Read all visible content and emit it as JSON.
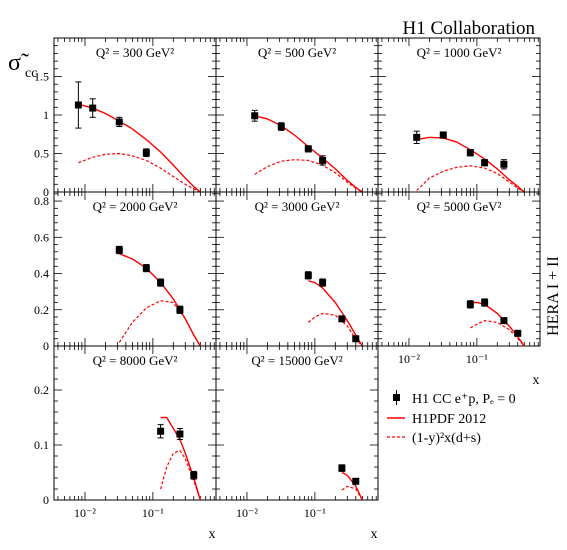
{
  "collaboration": "H1 Collaboration",
  "ylabel": "σ̃",
  "ylabel_sub": "cc",
  "xlabel": "x",
  "side_label": "HERA I + II",
  "legend": {
    "data": "H1 CC e⁺p, Pₑ = 0",
    "theory": "H1PDF 2012",
    "dashed": "(1-y)²x(d+s)"
  },
  "colors": {
    "theory": "#ff0000",
    "data": "#000000"
  },
  "chart_data": {
    "type": "scatter",
    "x_scale": "log",
    "x_ticks": [
      "10⁻²",
      "10⁻¹"
    ],
    "panels": [
      {
        "q2_label": "Q² = 300 GeV²",
        "ylim": [
          0,
          2
        ],
        "yticks": [
          "0",
          "0.5",
          "1",
          "1.5"
        ],
        "points": [
          {
            "x": 0.008,
            "y": 1.13,
            "err": 0.3
          },
          {
            "x": 0.013,
            "y": 1.09,
            "err": 0.12
          },
          {
            "x": 0.032,
            "y": 0.91,
            "err": 0.06
          },
          {
            "x": 0.08,
            "y": 0.51,
            "err": 0.05
          }
        ],
        "theory": [
          [
            0.008,
            1.14
          ],
          [
            0.013,
            1.09
          ],
          [
            0.02,
            1.02
          ],
          [
            0.032,
            0.92
          ],
          [
            0.05,
            0.82
          ],
          [
            0.08,
            0.68
          ],
          [
            0.13,
            0.52
          ],
          [
            0.2,
            0.35
          ],
          [
            0.3,
            0.18
          ],
          [
            0.4,
            0.07
          ],
          [
            0.5,
            0.0
          ]
        ],
        "dashed": [
          [
            0.008,
            0.38
          ],
          [
            0.013,
            0.45
          ],
          [
            0.02,
            0.49
          ],
          [
            0.032,
            0.5
          ],
          [
            0.05,
            0.47
          ],
          [
            0.08,
            0.41
          ],
          [
            0.13,
            0.31
          ],
          [
            0.2,
            0.2
          ],
          [
            0.3,
            0.1
          ],
          [
            0.4,
            0.04
          ],
          [
            0.5,
            0.0
          ]
        ]
      },
      {
        "q2_label": "Q² = 500 GeV²",
        "ylim": [
          0,
          2
        ],
        "yticks": [],
        "points": [
          {
            "x": 0.013,
            "y": 0.99,
            "err": 0.07
          },
          {
            "x": 0.032,
            "y": 0.85,
            "err": 0.05
          },
          {
            "x": 0.08,
            "y": 0.56,
            "err": 0.04
          },
          {
            "x": 0.13,
            "y": 0.41,
            "err": 0.06
          }
        ],
        "theory": [
          [
            0.013,
            0.99
          ],
          [
            0.02,
            0.95
          ],
          [
            0.032,
            0.86
          ],
          [
            0.05,
            0.74
          ],
          [
            0.08,
            0.59
          ],
          [
            0.13,
            0.44
          ],
          [
            0.2,
            0.3
          ],
          [
            0.3,
            0.15
          ],
          [
            0.4,
            0.06
          ],
          [
            0.5,
            0.0
          ]
        ],
        "dashed": [
          [
            0.013,
            0.23
          ],
          [
            0.02,
            0.33
          ],
          [
            0.032,
            0.4
          ],
          [
            0.05,
            0.42
          ],
          [
            0.08,
            0.41
          ],
          [
            0.13,
            0.35
          ],
          [
            0.2,
            0.25
          ],
          [
            0.3,
            0.13
          ],
          [
            0.4,
            0.05
          ],
          [
            0.5,
            0.0
          ]
        ]
      },
      {
        "q2_label": "Q² = 1000 GeV²",
        "ylim": [
          0,
          2
        ],
        "yticks": [],
        "points": [
          {
            "x": 0.013,
            "y": 0.71,
            "err": 0.08
          },
          {
            "x": 0.032,
            "y": 0.74,
            "err": 0.04
          },
          {
            "x": 0.08,
            "y": 0.51,
            "err": 0.04
          },
          {
            "x": 0.13,
            "y": 0.38,
            "err": 0.04
          },
          {
            "x": 0.25,
            "y": 0.36,
            "err": 0.06
          }
        ],
        "theory": [
          [
            0.013,
            0.68
          ],
          [
            0.02,
            0.71
          ],
          [
            0.032,
            0.7
          ],
          [
            0.05,
            0.65
          ],
          [
            0.08,
            0.55
          ],
          [
            0.13,
            0.43
          ],
          [
            0.2,
            0.3
          ],
          [
            0.3,
            0.16
          ],
          [
            0.4,
            0.07
          ],
          [
            0.5,
            0.0
          ]
        ],
        "dashed": [
          [
            0.013,
            0.02
          ],
          [
            0.02,
            0.18
          ],
          [
            0.032,
            0.27
          ],
          [
            0.05,
            0.32
          ],
          [
            0.08,
            0.34
          ],
          [
            0.13,
            0.31
          ],
          [
            0.2,
            0.24
          ],
          [
            0.3,
            0.13
          ],
          [
            0.4,
            0.05
          ],
          [
            0.5,
            0.0
          ]
        ]
      },
      {
        "q2_label": "Q² = 2000 GeV²",
        "ylim": [
          0,
          0.85
        ],
        "yticks": [
          "0",
          "0.2",
          "0.4",
          "0.6",
          "0.8"
        ],
        "points": [
          {
            "x": 0.032,
            "y": 0.53,
            "err": 0.02
          },
          {
            "x": 0.08,
            "y": 0.43,
            "err": 0.02
          },
          {
            "x": 0.13,
            "y": 0.35,
            "err": 0.02
          },
          {
            "x": 0.25,
            "y": 0.2,
            "err": 0.02
          }
        ],
        "theory": [
          [
            0.032,
            0.51
          ],
          [
            0.05,
            0.48
          ],
          [
            0.08,
            0.43
          ],
          [
            0.13,
            0.35
          ],
          [
            0.2,
            0.26
          ],
          [
            0.3,
            0.15
          ],
          [
            0.4,
            0.06
          ],
          [
            0.5,
            0.0
          ]
        ],
        "dashed": [
          [
            0.032,
            0.02
          ],
          [
            0.05,
            0.13
          ],
          [
            0.08,
            0.21
          ],
          [
            0.13,
            0.25
          ],
          [
            0.2,
            0.24
          ],
          [
            0.3,
            0.15
          ],
          [
            0.4,
            0.06
          ],
          [
            0.5,
            0.0
          ]
        ]
      },
      {
        "q2_label": "Q² = 3000 GeV²",
        "ylim": [
          0,
          0.85
        ],
        "yticks": [],
        "points": [
          {
            "x": 0.08,
            "y": 0.39,
            "err": 0.02
          },
          {
            "x": 0.13,
            "y": 0.35,
            "err": 0.02
          },
          {
            "x": 0.25,
            "y": 0.15,
            "err": 0.01
          },
          {
            "x": 0.4,
            "y": 0.04,
            "err": 0.01
          }
        ],
        "theory": [
          [
            0.08,
            0.36
          ],
          [
            0.1,
            0.35
          ],
          [
            0.13,
            0.32
          ],
          [
            0.2,
            0.24
          ],
          [
            0.3,
            0.14
          ],
          [
            0.4,
            0.06
          ],
          [
            0.5,
            0.0
          ]
        ],
        "dashed": [
          [
            0.08,
            0.13
          ],
          [
            0.1,
            0.16
          ],
          [
            0.13,
            0.18
          ],
          [
            0.2,
            0.17
          ],
          [
            0.3,
            0.11
          ],
          [
            0.4,
            0.04
          ],
          [
            0.5,
            0.0
          ]
        ]
      },
      {
        "q2_label": "Q² = 5000 GeV²",
        "ylim": [
          0,
          0.85
        ],
        "yticks": [],
        "points": [
          {
            "x": 0.08,
            "y": 0.23,
            "err": 0.02
          },
          {
            "x": 0.13,
            "y": 0.24,
            "err": 0.02
          },
          {
            "x": 0.25,
            "y": 0.14,
            "err": 0.01
          },
          {
            "x": 0.4,
            "y": 0.07,
            "err": 0.01
          }
        ],
        "theory": [
          [
            0.08,
            0.24
          ],
          [
            0.1,
            0.24
          ],
          [
            0.13,
            0.23
          ],
          [
            0.2,
            0.18
          ],
          [
            0.3,
            0.11
          ],
          [
            0.4,
            0.05
          ],
          [
            0.5,
            0.0
          ]
        ],
        "dashed": [
          [
            0.08,
            0.1
          ],
          [
            0.1,
            0.12
          ],
          [
            0.13,
            0.14
          ],
          [
            0.2,
            0.13
          ],
          [
            0.3,
            0.09
          ],
          [
            0.4,
            0.04
          ],
          [
            0.5,
            0.0
          ]
        ]
      },
      {
        "q2_label": "Q² = 8000 GeV²",
        "ylim": [
          0,
          0.28
        ],
        "yticks": [
          "0",
          "0.1",
          "0.2"
        ],
        "points": [
          {
            "x": 0.13,
            "y": 0.125,
            "err": 0.012
          },
          {
            "x": 0.25,
            "y": 0.12,
            "err": 0.01
          },
          {
            "x": 0.4,
            "y": 0.045,
            "err": 0.007
          }
        ],
        "theory": [
          [
            0.13,
            0.15
          ],
          [
            0.16,
            0.15
          ],
          [
            0.2,
            0.13
          ],
          [
            0.25,
            0.11
          ],
          [
            0.3,
            0.085
          ],
          [
            0.4,
            0.04
          ],
          [
            0.5,
            0.0
          ]
        ],
        "dashed": [
          [
            0.13,
            0.02
          ],
          [
            0.16,
            0.06
          ],
          [
            0.2,
            0.085
          ],
          [
            0.25,
            0.09
          ],
          [
            0.3,
            0.075
          ],
          [
            0.4,
            0.035
          ],
          [
            0.5,
            0.0
          ]
        ]
      },
      {
        "q2_label": "Q² = 15000 GeV²",
        "ylim": [
          0,
          0.28
        ],
        "yticks": [],
        "points": [
          {
            "x": 0.25,
            "y": 0.058,
            "err": 0.006
          },
          {
            "x": 0.4,
            "y": 0.034,
            "err": 0.005
          }
        ],
        "theory": [
          [
            0.25,
            0.05
          ],
          [
            0.3,
            0.045
          ],
          [
            0.4,
            0.025
          ],
          [
            0.5,
            0.0
          ]
        ],
        "dashed": [
          [
            0.25,
            0.018
          ],
          [
            0.3,
            0.025
          ],
          [
            0.4,
            0.02
          ],
          [
            0.5,
            0.0
          ]
        ]
      }
    ]
  }
}
